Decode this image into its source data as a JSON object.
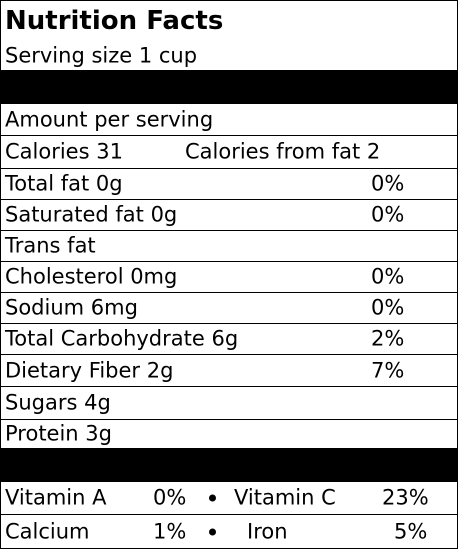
{
  "title": "Nutrition Facts",
  "serving_size": "Serving size 1 cup",
  "amount_per_serving": "Amount per serving",
  "calories": "Calories 31",
  "calories_from_fat": "Calories from fat 2",
  "nutrients": [
    {
      "label": "Total fat 0g",
      "dv": "0%"
    },
    {
      "label": "Saturated fat 0g",
      "dv": "0%"
    },
    {
      "label": "Trans fat",
      "dv": ""
    },
    {
      "label": "Cholesterol 0mg",
      "dv": "0%"
    },
    {
      "label": "Sodium 6mg",
      "dv": "0%"
    },
    {
      "label": "Total Carbohydrate 6g",
      "dv": "2%"
    },
    {
      "label": "Dietary Fiber 2g",
      "dv": "7%"
    },
    {
      "label": "Sugars 4g",
      "dv": ""
    },
    {
      "label": "Protein 3g",
      "dv": ""
    }
  ],
  "vitamins": [
    {
      "left_label": "Vitamin A",
      "left_value": "0%",
      "right_label": "Vitamin C",
      "right_value": "23%"
    },
    {
      "left_label": "Calcium",
      "left_value": "1%",
      "right_label": "Iron",
      "right_value": "5%"
    }
  ]
}
